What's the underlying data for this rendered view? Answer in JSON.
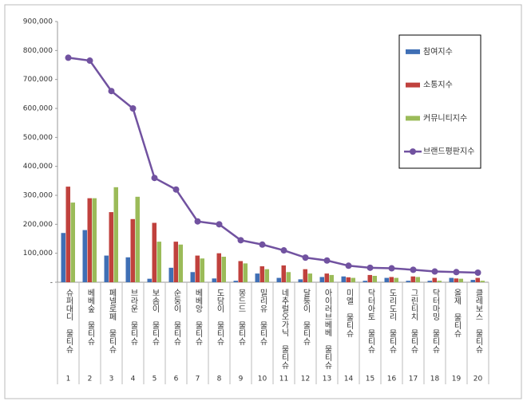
{
  "chart_data": {
    "type": "bar_line",
    "categories": [
      "슈퍼대디 물티슈",
      "베베숲 물티슈",
      "페넬로페 물티슈",
      "브라운 물티슈",
      "보솜이 물티슈",
      "순둥이 물티슈",
      "베베앙 물티슈",
      "도담이 물티슈",
      "몽드드 물티슈",
      "밀리유 물티슈",
      "네추럴오가닉 물티슈",
      "달퉁이 물티슈",
      "아이러브베베 물티슈",
      "미엘 물티슈",
      "닥터아토 물티슈",
      "도리도리 물티슈",
      "그린티치 물티슈",
      "닥터마밍 물티슈",
      "올제 물티슈",
      "클레보스 물티슈"
    ],
    "ranks": [
      1,
      2,
      3,
      4,
      5,
      6,
      7,
      8,
      9,
      10,
      11,
      12,
      13,
      14,
      15,
      16,
      17,
      18,
      19,
      20
    ],
    "series": [
      {
        "name": "참여지수",
        "color": "#3f6fb5",
        "kind": "bar",
        "values": [
          170000,
          180000,
          92000,
          86000,
          12000,
          50000,
          35000,
          13000,
          5000,
          30000,
          15000,
          10000,
          18000,
          20000,
          5000,
          15000,
          5000,
          5000,
          15000,
          8000
        ]
      },
      {
        "name": "소통지수",
        "color": "#c0413d",
        "kind": "bar",
        "values": [
          330000,
          290000,
          242000,
          218000,
          205000,
          140000,
          92000,
          100000,
          73000,
          55000,
          58000,
          45000,
          30000,
          17000,
          25000,
          18000,
          20000,
          15000,
          13000,
          15000
        ]
      },
      {
        "name": "커뮤니티지수",
        "color": "#9bbb59",
        "kind": "bar",
        "values": [
          275000,
          290000,
          328000,
          295000,
          140000,
          130000,
          82000,
          88000,
          65000,
          45000,
          35000,
          30000,
          25000,
          15000,
          22000,
          15000,
          18000,
          5000,
          12000,
          5000
        ]
      },
      {
        "name": "브랜드평판지수",
        "color": "#7152a0",
        "kind": "line",
        "values": [
          775000,
          765000,
          660000,
          600000,
          360000,
          320000,
          210000,
          200000,
          145000,
          130000,
          110000,
          85000,
          75000,
          57000,
          50000,
          48000,
          43000,
          37000,
          35000,
          33000
        ]
      }
    ],
    "ylim": [
      0,
      900000
    ],
    "yticks": [
      {
        "value": 0,
        "label": "-"
      },
      {
        "value": 100000,
        "label": "100,000"
      },
      {
        "value": 200000,
        "label": "200,000"
      },
      {
        "value": 300000,
        "label": "300,000"
      },
      {
        "value": 400000,
        "label": "400,000"
      },
      {
        "value": 500000,
        "label": "500,000"
      },
      {
        "value": 600000,
        "label": "600,000"
      },
      {
        "value": 700000,
        "label": "700,000"
      },
      {
        "value": 800000,
        "label": "800,000"
      },
      {
        "value": 900000,
        "label": "900,000"
      }
    ],
    "legend": "right"
  }
}
